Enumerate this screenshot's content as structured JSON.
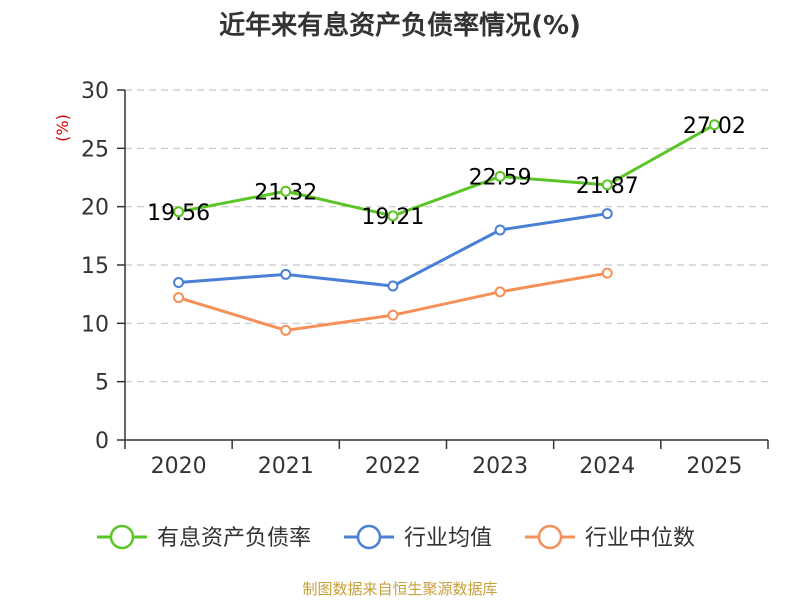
{
  "chart_data": {
    "type": "line",
    "title": "近年来有息资产负债率情况(%)",
    "ylabel": "(%)",
    "categories": [
      "2020",
      "2021",
      "2022",
      "2023",
      "2024",
      "2025"
    ],
    "ylim": [
      0,
      30
    ],
    "yticks": [
      0,
      5,
      10,
      15,
      20,
      25,
      30
    ],
    "grid": true,
    "legend_position": "bottom",
    "series": [
      {
        "name": "有息资产负债率",
        "color": "#5bc528",
        "values": [
          19.56,
          21.32,
          19.21,
          22.59,
          21.87,
          27.02
        ],
        "labels": [
          "19.56",
          "21.32",
          "19.21",
          "22.59",
          "21.87",
          "27.02"
        ]
      },
      {
        "name": "行业均值",
        "color": "#4a7fd6",
        "values": [
          13.5,
          14.2,
          13.2,
          18.0,
          19.4,
          null
        ]
      },
      {
        "name": "行业中位数",
        "color": "#f59158",
        "values": [
          12.2,
          9.4,
          10.7,
          12.7,
          14.3,
          null
        ]
      }
    ]
  },
  "source": "制图数据来自恒生聚源数据库"
}
